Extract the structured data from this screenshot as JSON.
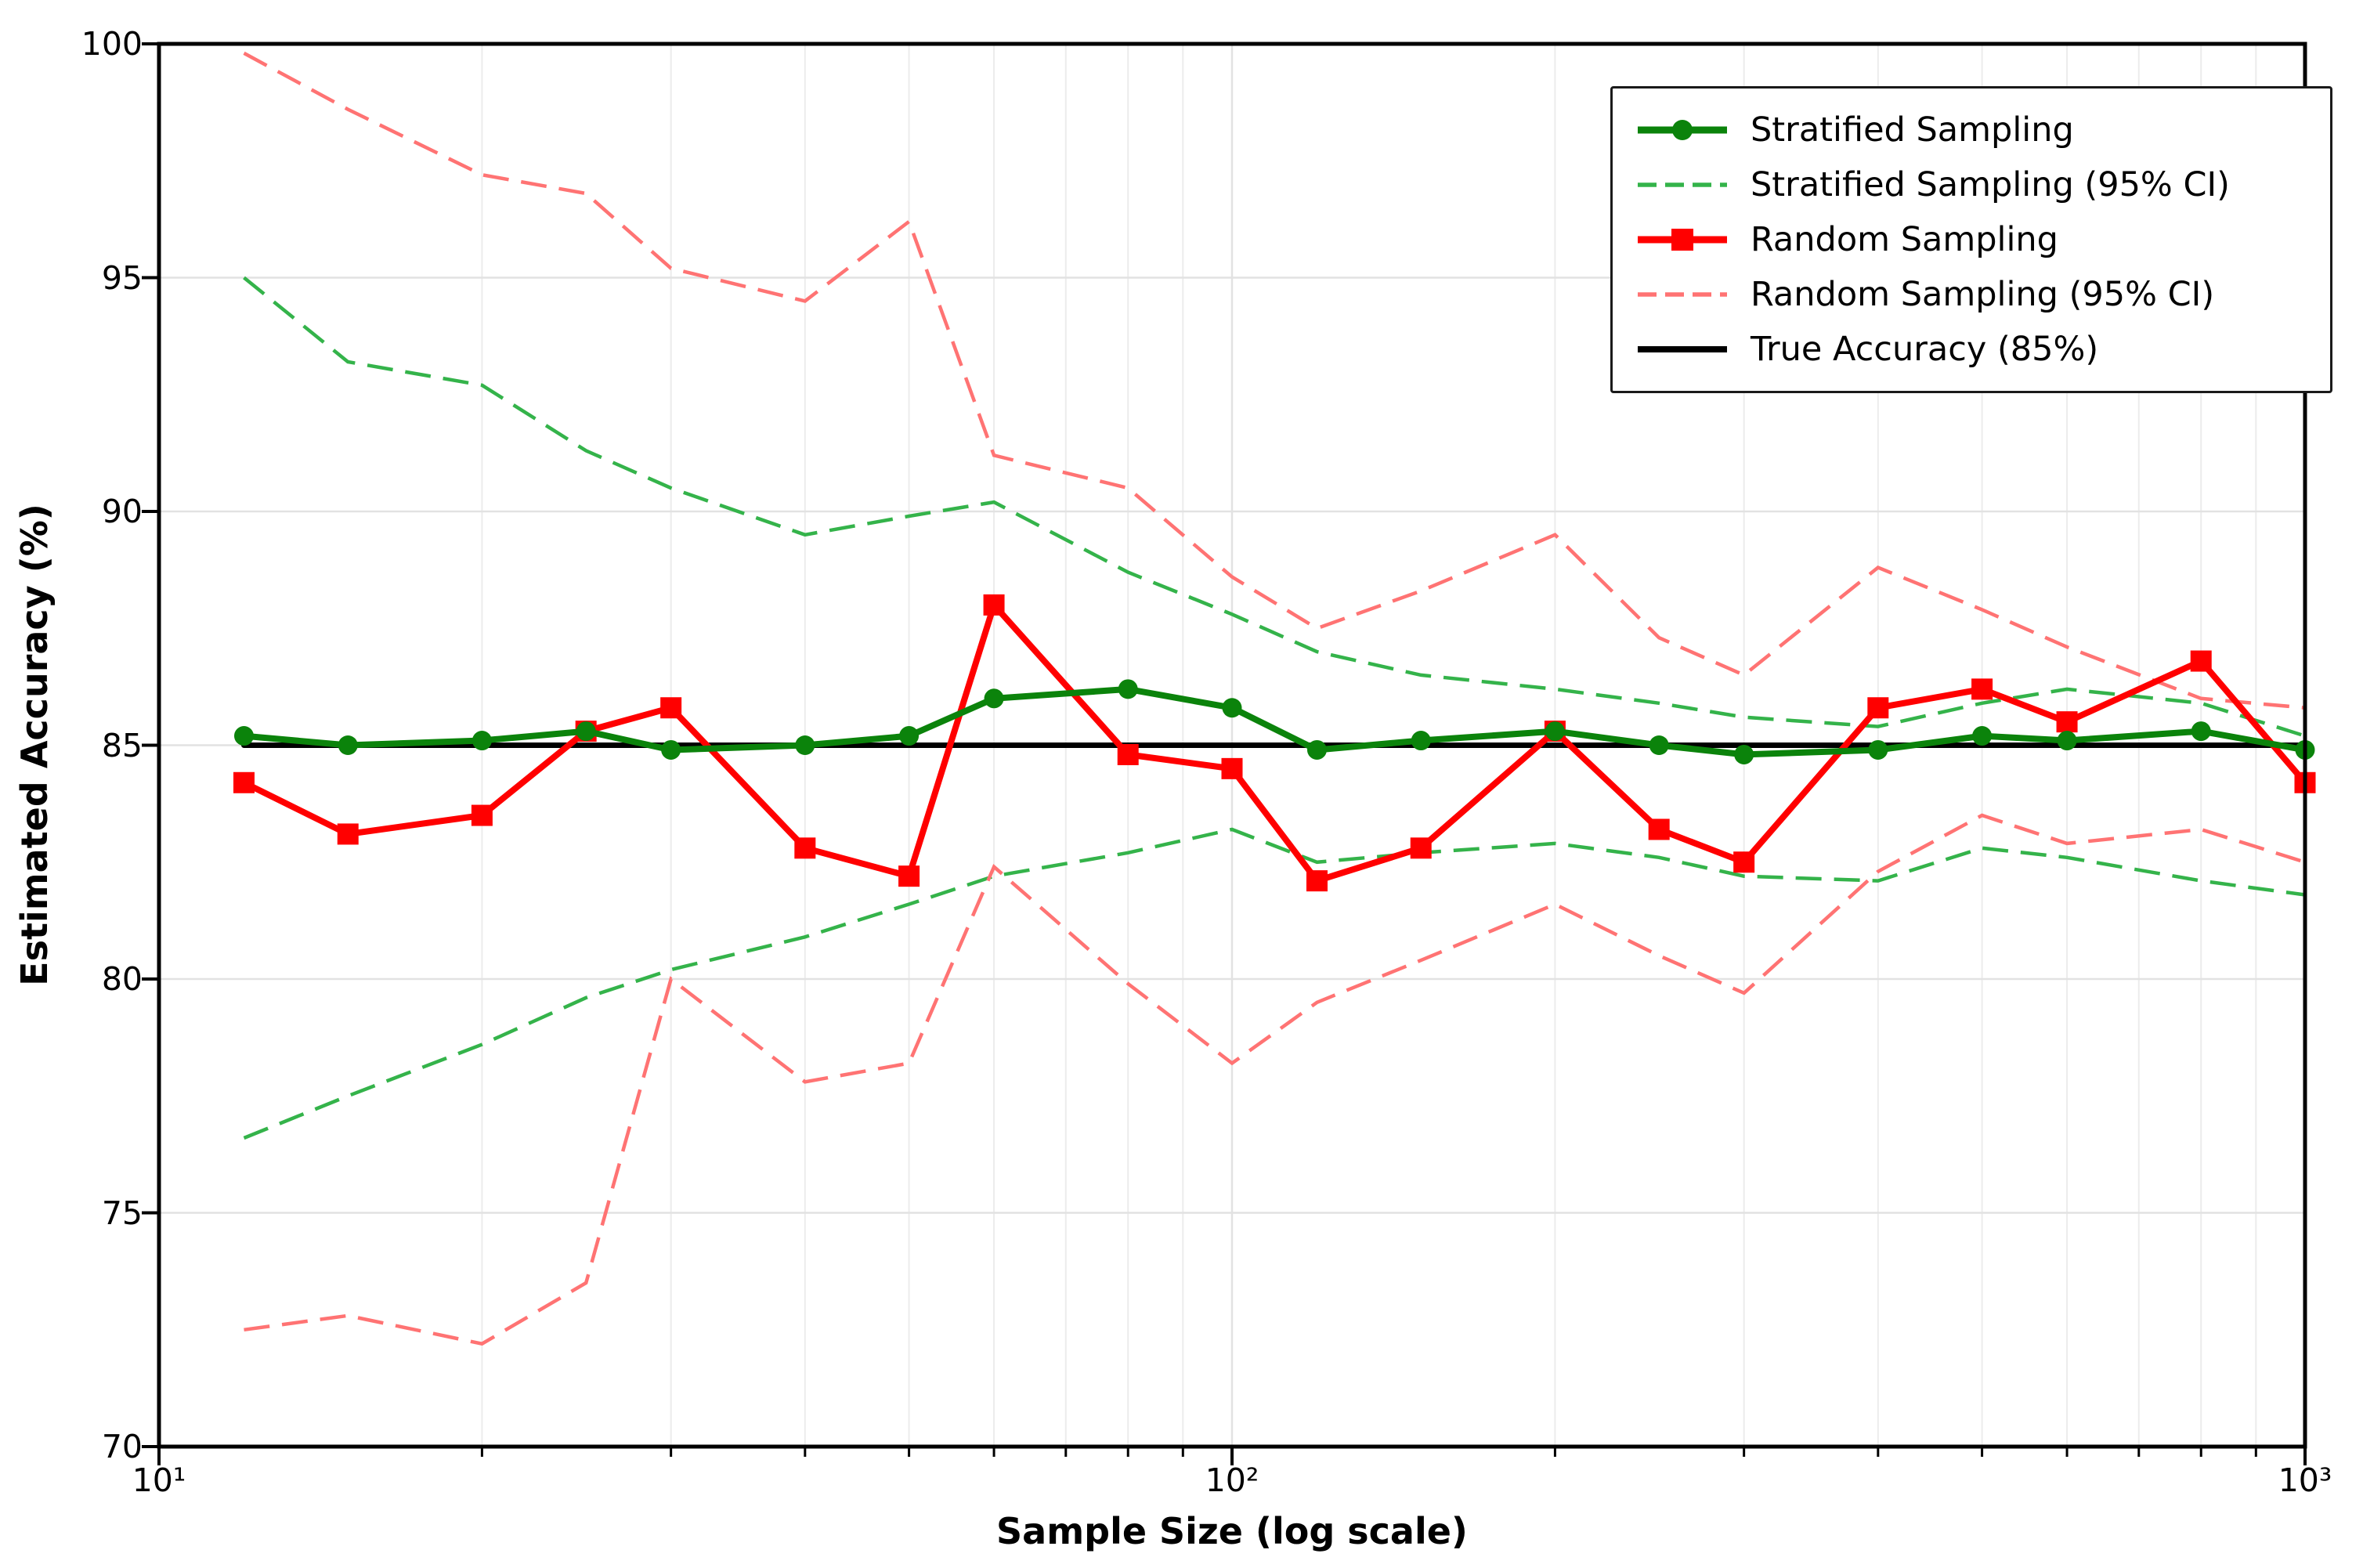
{
  "figure": {
    "background": "#ffffff"
  },
  "colors": {
    "stratified": "#0b830b",
    "stratified_ci": "#34b34a",
    "random": "#ff0000",
    "random_ci": "#ff7373",
    "true_line": "#000000",
    "grid_major": "#e2e2e2",
    "grid_minor": "#ececec",
    "frame": "#000000"
  },
  "axes": {
    "x": {
      "label": "Sample Size (log scale)",
      "scale": "log",
      "range": [
        10,
        1000
      ],
      "tick_values": [
        10,
        100,
        1000
      ],
      "tick_labels": [
        "10¹",
        "10²",
        "10³"
      ]
    },
    "y": {
      "label": "Estimated Accuracy (%)",
      "scale": "linear",
      "range": [
        70,
        100
      ],
      "tick_values": [
        70,
        75,
        80,
        85,
        90,
        95,
        100
      ],
      "tick_labels": [
        "70",
        "75",
        "80",
        "85",
        "90",
        "95",
        "100"
      ]
    }
  },
  "legend": {
    "position": "upper right",
    "entries": [
      {
        "label": "Stratified Sampling",
        "series": 0
      },
      {
        "label": "Stratified Sampling (95% CI)",
        "series": 1
      },
      {
        "label": "Random Sampling",
        "series": 2
      },
      {
        "label": "Random Sampling (95% CI)",
        "series": 3
      },
      {
        "label": "True Accuracy (85%)",
        "series": 4
      }
    ]
  },
  "chart_data": {
    "type": "line",
    "title": "",
    "xlabel": "Sample Size (log scale)",
    "ylabel": "Estimated Accuracy (%)",
    "xscale": "log",
    "xlim": [
      10,
      1000
    ],
    "ylim": [
      70,
      100
    ],
    "grid": true,
    "legend_position": "upper right",
    "x": [
      12,
      15,
      20,
      25,
      30,
      40,
      50,
      60,
      80,
      100,
      120,
      150,
      200,
      250,
      300,
      400,
      500,
      600,
      800,
      1000
    ],
    "true_accuracy": 85,
    "series": [
      {
        "name": "Stratified Sampling",
        "style": "solid",
        "marker": "circle",
        "color_key": "stratified",
        "width": 8,
        "values": [
          85.2,
          85.0,
          85.1,
          85.3,
          84.9,
          85.0,
          85.2,
          86.0,
          86.2,
          85.8,
          84.9,
          85.1,
          85.3,
          85.0,
          84.8,
          84.9,
          85.2,
          85.1,
          85.3,
          84.9
        ]
      },
      {
        "name": "Stratified Sampling (95% CI)",
        "style": "dashed",
        "marker": "none",
        "color_key": "stratified_ci",
        "width": 4.5,
        "upper": [
          95.0,
          93.2,
          92.7,
          91.3,
          90.5,
          89.5,
          89.9,
          90.2,
          88.7,
          87.8,
          87.0,
          86.5,
          86.2,
          85.9,
          85.6,
          85.4,
          85.9,
          86.2,
          85.9,
          85.2
        ],
        "lower": [
          76.6,
          77.5,
          78.6,
          79.6,
          80.2,
          80.9,
          81.6,
          82.2,
          82.7,
          83.2,
          82.5,
          82.7,
          82.9,
          82.6,
          82.2,
          82.1,
          82.8,
          82.6,
          82.1,
          81.8
        ]
      },
      {
        "name": "Random Sampling",
        "style": "solid",
        "marker": "square",
        "color_key": "random",
        "width": 8,
        "values": [
          84.2,
          83.1,
          83.5,
          85.3,
          85.8,
          82.8,
          82.2,
          88.0,
          84.8,
          84.5,
          82.1,
          82.8,
          85.3,
          83.2,
          82.5,
          85.8,
          86.2,
          85.5,
          86.8,
          84.2
        ]
      },
      {
        "name": "Random Sampling (95% CI)",
        "style": "dashed",
        "marker": "none",
        "color_key": "random_ci",
        "width": 4.5,
        "upper": [
          99.8,
          98.6,
          97.2,
          96.8,
          95.2,
          94.5,
          96.2,
          91.2,
          90.5,
          88.6,
          87.5,
          88.3,
          89.5,
          87.3,
          86.5,
          88.8,
          87.9,
          87.1,
          86.0,
          85.8
        ],
        "lower": [
          72.5,
          72.8,
          72.2,
          73.5,
          80.0,
          77.8,
          78.2,
          82.4,
          79.9,
          78.2,
          79.5,
          80.4,
          81.6,
          80.5,
          79.7,
          82.3,
          83.5,
          82.9,
          83.2,
          82.5
        ]
      },
      {
        "name": "True Accuracy (85%)",
        "style": "solid",
        "marker": "none",
        "color_key": "true_line",
        "width": 7,
        "values": [
          85,
          85,
          85,
          85,
          85,
          85,
          85,
          85,
          85,
          85,
          85,
          85,
          85,
          85,
          85,
          85,
          85,
          85,
          85,
          85
        ]
      }
    ]
  }
}
